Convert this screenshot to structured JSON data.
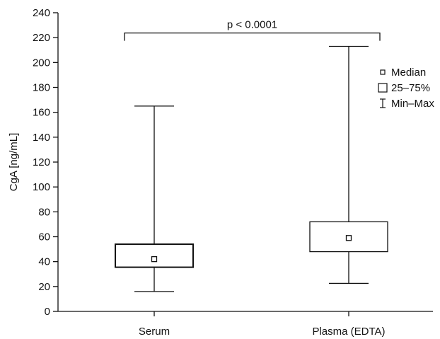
{
  "chart_data": {
    "type": "box",
    "ylabel": "CgA [ng/mL]",
    "ylim": [
      0,
      240
    ],
    "yticks": [
      0,
      20,
      40,
      60,
      80,
      100,
      120,
      140,
      160,
      180,
      200,
      220,
      240
    ],
    "ytick_labels": [
      "0",
      "20",
      "40",
      "60",
      "80",
      "100",
      "120",
      "140",
      "160",
      "180",
      "200",
      "220",
      "240"
    ],
    "categories": [
      "Serum",
      "Plasma (EDTA)"
    ],
    "series": [
      {
        "category": "Serum",
        "min": 16,
        "q1": 35.5,
        "median": 42,
        "q3": 54,
        "max": 165
      },
      {
        "category": "Plasma (EDTA)",
        "min": 22.5,
        "q1": 48,
        "median": 59,
        "q3": 72,
        "max": 213
      }
    ],
    "annotation": {
      "text": "p < 0.0001",
      "y": 222
    },
    "legend": {
      "position": "right",
      "items": [
        {
          "symbol": "median",
          "label": "Median"
        },
        {
          "symbol": "box",
          "label": "25–75%"
        },
        {
          "symbol": "whisker",
          "label": "Min–Max"
        }
      ]
    },
    "grid": false
  },
  "colors": {
    "stroke": "#111111",
    "background": "#ffffff"
  }
}
